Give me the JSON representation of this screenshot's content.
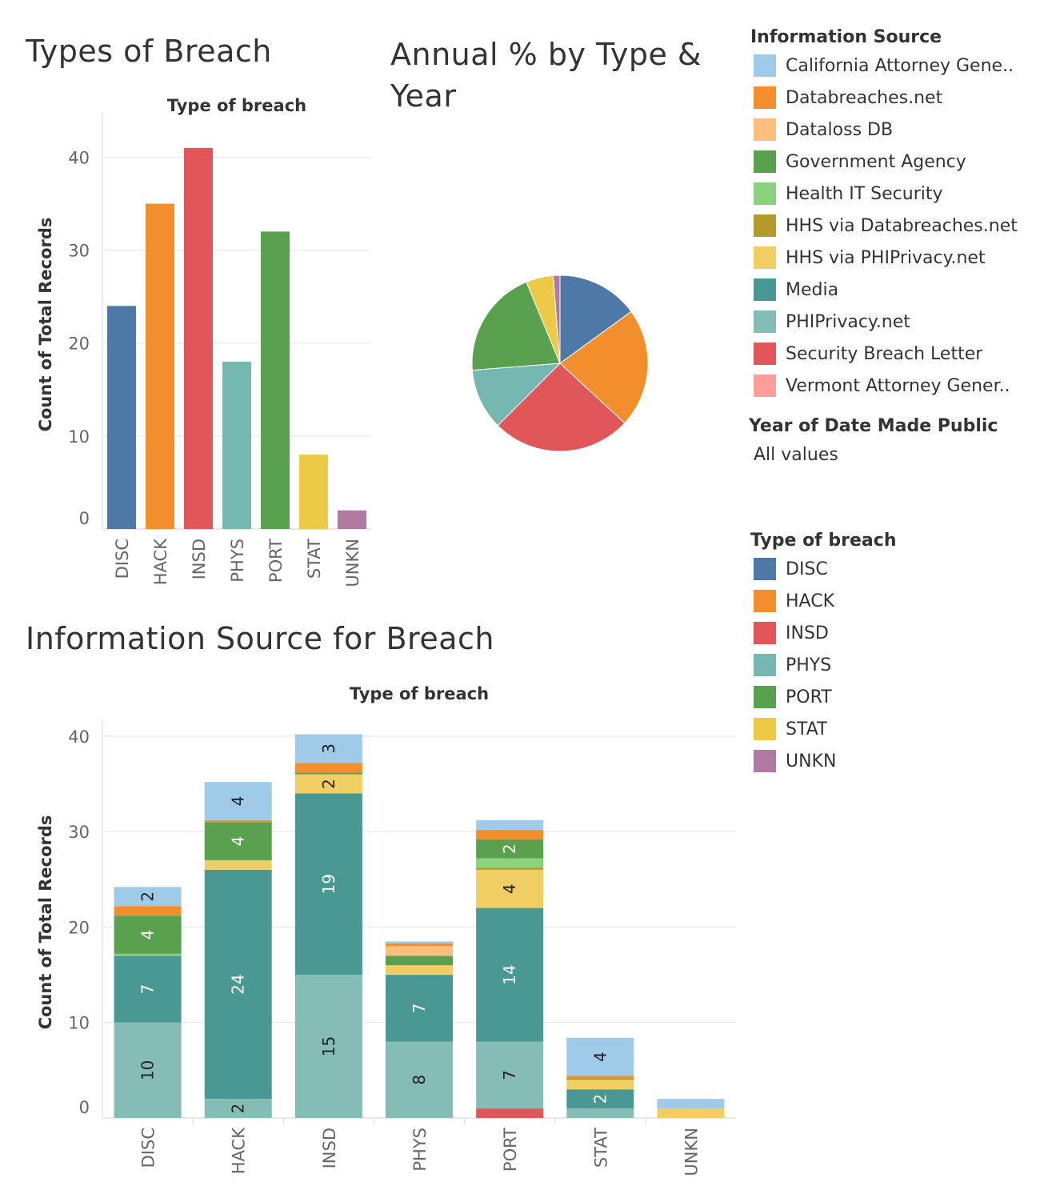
{
  "titles": {
    "types_of_breach": "Types of Breach",
    "annual_pct": "Annual % by Type & Year",
    "info_source": "Information Source for Breach"
  },
  "legend_info_source": {
    "title": "Information Source",
    "items": [
      {
        "label": "California Attorney Gene..",
        "color": "#a0cbe8"
      },
      {
        "label": "Databreaches.net",
        "color": "#f28e2b"
      },
      {
        "label": "Dataloss DB",
        "color": "#ffbe7d"
      },
      {
        "label": "Government Agency",
        "color": "#59a14f"
      },
      {
        "label": "Health IT Security",
        "color": "#8cd17d"
      },
      {
        "label": "HHS via Databreaches.net",
        "color": "#b6992d"
      },
      {
        "label": "HHS via PHIPrivacy.net",
        "color": "#f1ce63"
      },
      {
        "label": "Media",
        "color": "#499894"
      },
      {
        "label": "PHIPrivacy.net",
        "color": "#86bcb6"
      },
      {
        "label": "Security Breach Letter",
        "color": "#e15759"
      },
      {
        "label": "Vermont Attorney Gener..",
        "color": "#ff9d9a"
      }
    ]
  },
  "filter": {
    "title": "Year of Date Made Public",
    "value": "All values"
  },
  "legend_type": {
    "title": "Type of breach",
    "items": [
      {
        "label": "DISC",
        "color": "#4e79a7"
      },
      {
        "label": "HACK",
        "color": "#f28e2b"
      },
      {
        "label": "INSD",
        "color": "#e15759"
      },
      {
        "label": "PHYS",
        "color": "#76b7b2"
      },
      {
        "label": "PORT",
        "color": "#59a14f"
      },
      {
        "label": "STAT",
        "color": "#edc948"
      },
      {
        "label": "UNKN",
        "color": "#b07aa1"
      }
    ]
  },
  "chart_data": [
    {
      "type": "bar",
      "title": "Types of Breach",
      "header": "Type of breach",
      "ylabel": "Count of Total Records",
      "categories": [
        "DISC",
        "HACK",
        "INSD",
        "PHYS",
        "PORT",
        "STAT",
        "UNKN"
      ],
      "values": [
        24,
        35,
        41,
        18,
        32,
        8,
        2
      ],
      "colors": [
        "#4e79a7",
        "#f28e2b",
        "#e15759",
        "#76b7b2",
        "#59a14f",
        "#edc948",
        "#b07aa1"
      ],
      "yticks": [
        0,
        10,
        20,
        30,
        40
      ],
      "ylim": [
        0,
        44
      ],
      "grid": true
    },
    {
      "type": "pie",
      "title": "Annual % by Type & Year",
      "categories": [
        "DISC",
        "HACK",
        "INSD",
        "PHYS",
        "PORT",
        "STAT",
        "UNKN"
      ],
      "values": [
        24,
        35,
        41,
        18,
        32,
        8,
        2
      ],
      "colors": [
        "#4e79a7",
        "#f28e2b",
        "#e15759",
        "#76b7b2",
        "#59a14f",
        "#edc948",
        "#b07aa1"
      ]
    },
    {
      "type": "bar",
      "stacked": true,
      "title": "Information Source for Breach",
      "header": "Type of breach",
      "ylabel": "Count of Total Records",
      "categories": [
        "DISC",
        "HACK",
        "INSD",
        "PHYS",
        "PORT",
        "STAT",
        "UNKN"
      ],
      "yticks": [
        0,
        10,
        20,
        30,
        40
      ],
      "ylim": [
        0,
        41
      ],
      "grid": true,
      "series": [
        {
          "name": "Security Breach Letter",
          "color": "#e15759",
          "values": [
            0,
            0,
            0,
            0,
            1,
            0,
            0
          ],
          "labels": [
            "",
            "",
            "",
            "",
            "",
            "",
            ""
          ],
          "label_colors": [
            "",
            "",
            "",
            "",
            "",
            "",
            ""
          ]
        },
        {
          "name": "PHIPrivacy.net",
          "color": "#86bcb6",
          "values": [
            10,
            2,
            15,
            8,
            7,
            1,
            0
          ],
          "labels": [
            "10",
            "2",
            "15",
            "8",
            "7",
            "",
            ""
          ],
          "label_colors": [
            "#222",
            "#222",
            "#222",
            "#222",
            "#222",
            "",
            ""
          ]
        },
        {
          "name": "Media",
          "color": "#499894",
          "values": [
            7,
            24,
            19,
            7,
            14,
            2,
            0
          ],
          "labels": [
            "7",
            "24",
            "19",
            "7",
            "14",
            "2",
            ""
          ],
          "label_colors": [
            "#fff",
            "#fff",
            "#fff",
            "#fff",
            "#fff",
            "#fff",
            ""
          ]
        },
        {
          "name": "HHS via PHIPrivacy.net",
          "color": "#f1ce63",
          "values": [
            0,
            1,
            2,
            1,
            4,
            1,
            1
          ],
          "labels": [
            "",
            "",
            "2",
            "",
            "4",
            "",
            ""
          ],
          "label_colors": [
            "",
            "",
            "#222",
            "",
            "#222",
            "",
            ""
          ]
        },
        {
          "name": "HHS via Databreaches.net",
          "color": "#b6992d",
          "values": [
            0,
            0,
            0,
            0,
            0.2,
            0.2,
            0
          ],
          "labels": [
            "",
            "",
            "",
            "",
            "",
            "",
            ""
          ],
          "label_colors": [
            "",
            "",
            "",
            "",
            "",
            "",
            ""
          ]
        },
        {
          "name": "Health IT Security",
          "color": "#8cd17d",
          "values": [
            0.2,
            0,
            0,
            0,
            1,
            0,
            0
          ],
          "labels": [
            "",
            "",
            "",
            "",
            "",
            "",
            ""
          ],
          "label_colors": [
            "",
            "",
            "",
            "",
            "",
            "",
            ""
          ]
        },
        {
          "name": "Government Agency",
          "color": "#59a14f",
          "values": [
            4,
            4,
            0.2,
            1,
            2,
            0,
            0
          ],
          "labels": [
            "4",
            "4",
            "",
            "",
            "2",
            "",
            ""
          ],
          "label_colors": [
            "#fff",
            "#fff",
            "",
            "",
            "#fff",
            "",
            ""
          ]
        },
        {
          "name": "Dataloss DB",
          "color": "#ffbe7d",
          "values": [
            0,
            0,
            0,
            1,
            0,
            0,
            0
          ],
          "labels": [
            "",
            "",
            "",
            "",
            "",
            "",
            ""
          ],
          "label_colors": [
            "",
            "",
            "",
            "",
            "",
            "",
            ""
          ]
        },
        {
          "name": "Databreaches.net",
          "color": "#f28e2b",
          "values": [
            1,
            0.2,
            1,
            0.3,
            1,
            0.2,
            0
          ],
          "labels": [
            "",
            "",
            "",
            "",
            "",
            "",
            ""
          ],
          "label_colors": [
            "",
            "",
            "",
            "",
            "",
            "",
            ""
          ]
        },
        {
          "name": "California Attorney Gene..",
          "color": "#a0cbe8",
          "values": [
            2,
            4,
            3,
            0.2,
            1,
            4,
            1
          ],
          "labels": [
            "2",
            "4",
            "3",
            "",
            "",
            "4",
            ""
          ],
          "label_colors": [
            "#222",
            "#222",
            "#222",
            "",
            "",
            "#222",
            ""
          ]
        }
      ]
    }
  ]
}
